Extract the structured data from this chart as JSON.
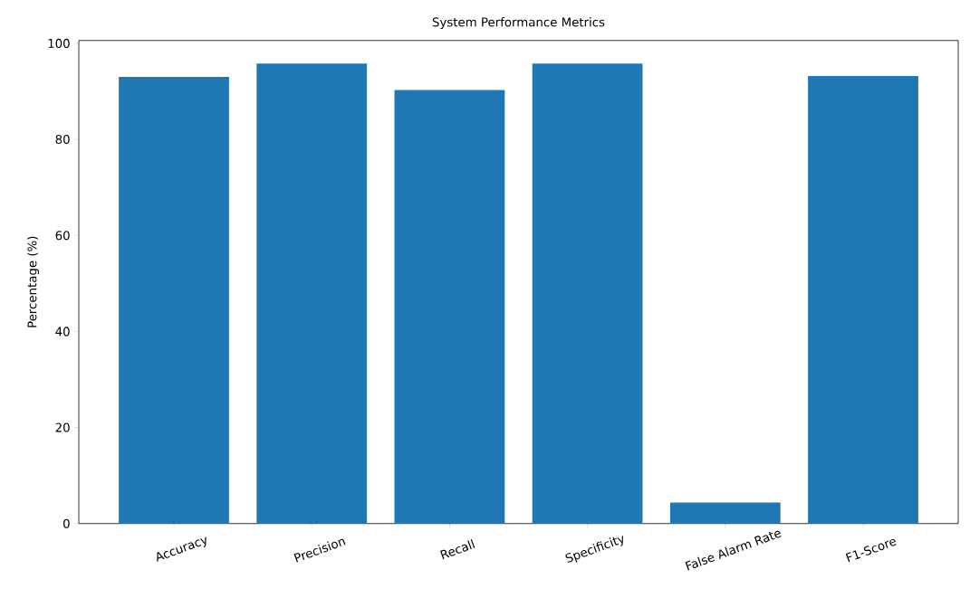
{
  "chart_data": {
    "type": "bar",
    "title": "System Performance Metrics",
    "ylabel": "Percentage (%)",
    "categories": [
      "Accuracy",
      "Precision",
      "Recall",
      "Specificity",
      "False Alarm Rate",
      "F1-Score"
    ],
    "values": [
      93.0,
      95.8,
      90.3,
      95.8,
      4.4,
      93.2
    ],
    "color": "#1f77b4",
    "ylim": [
      0,
      100.6
    ],
    "yticks": [
      0,
      20,
      40,
      60,
      80,
      100
    ],
    "grid": false
  }
}
